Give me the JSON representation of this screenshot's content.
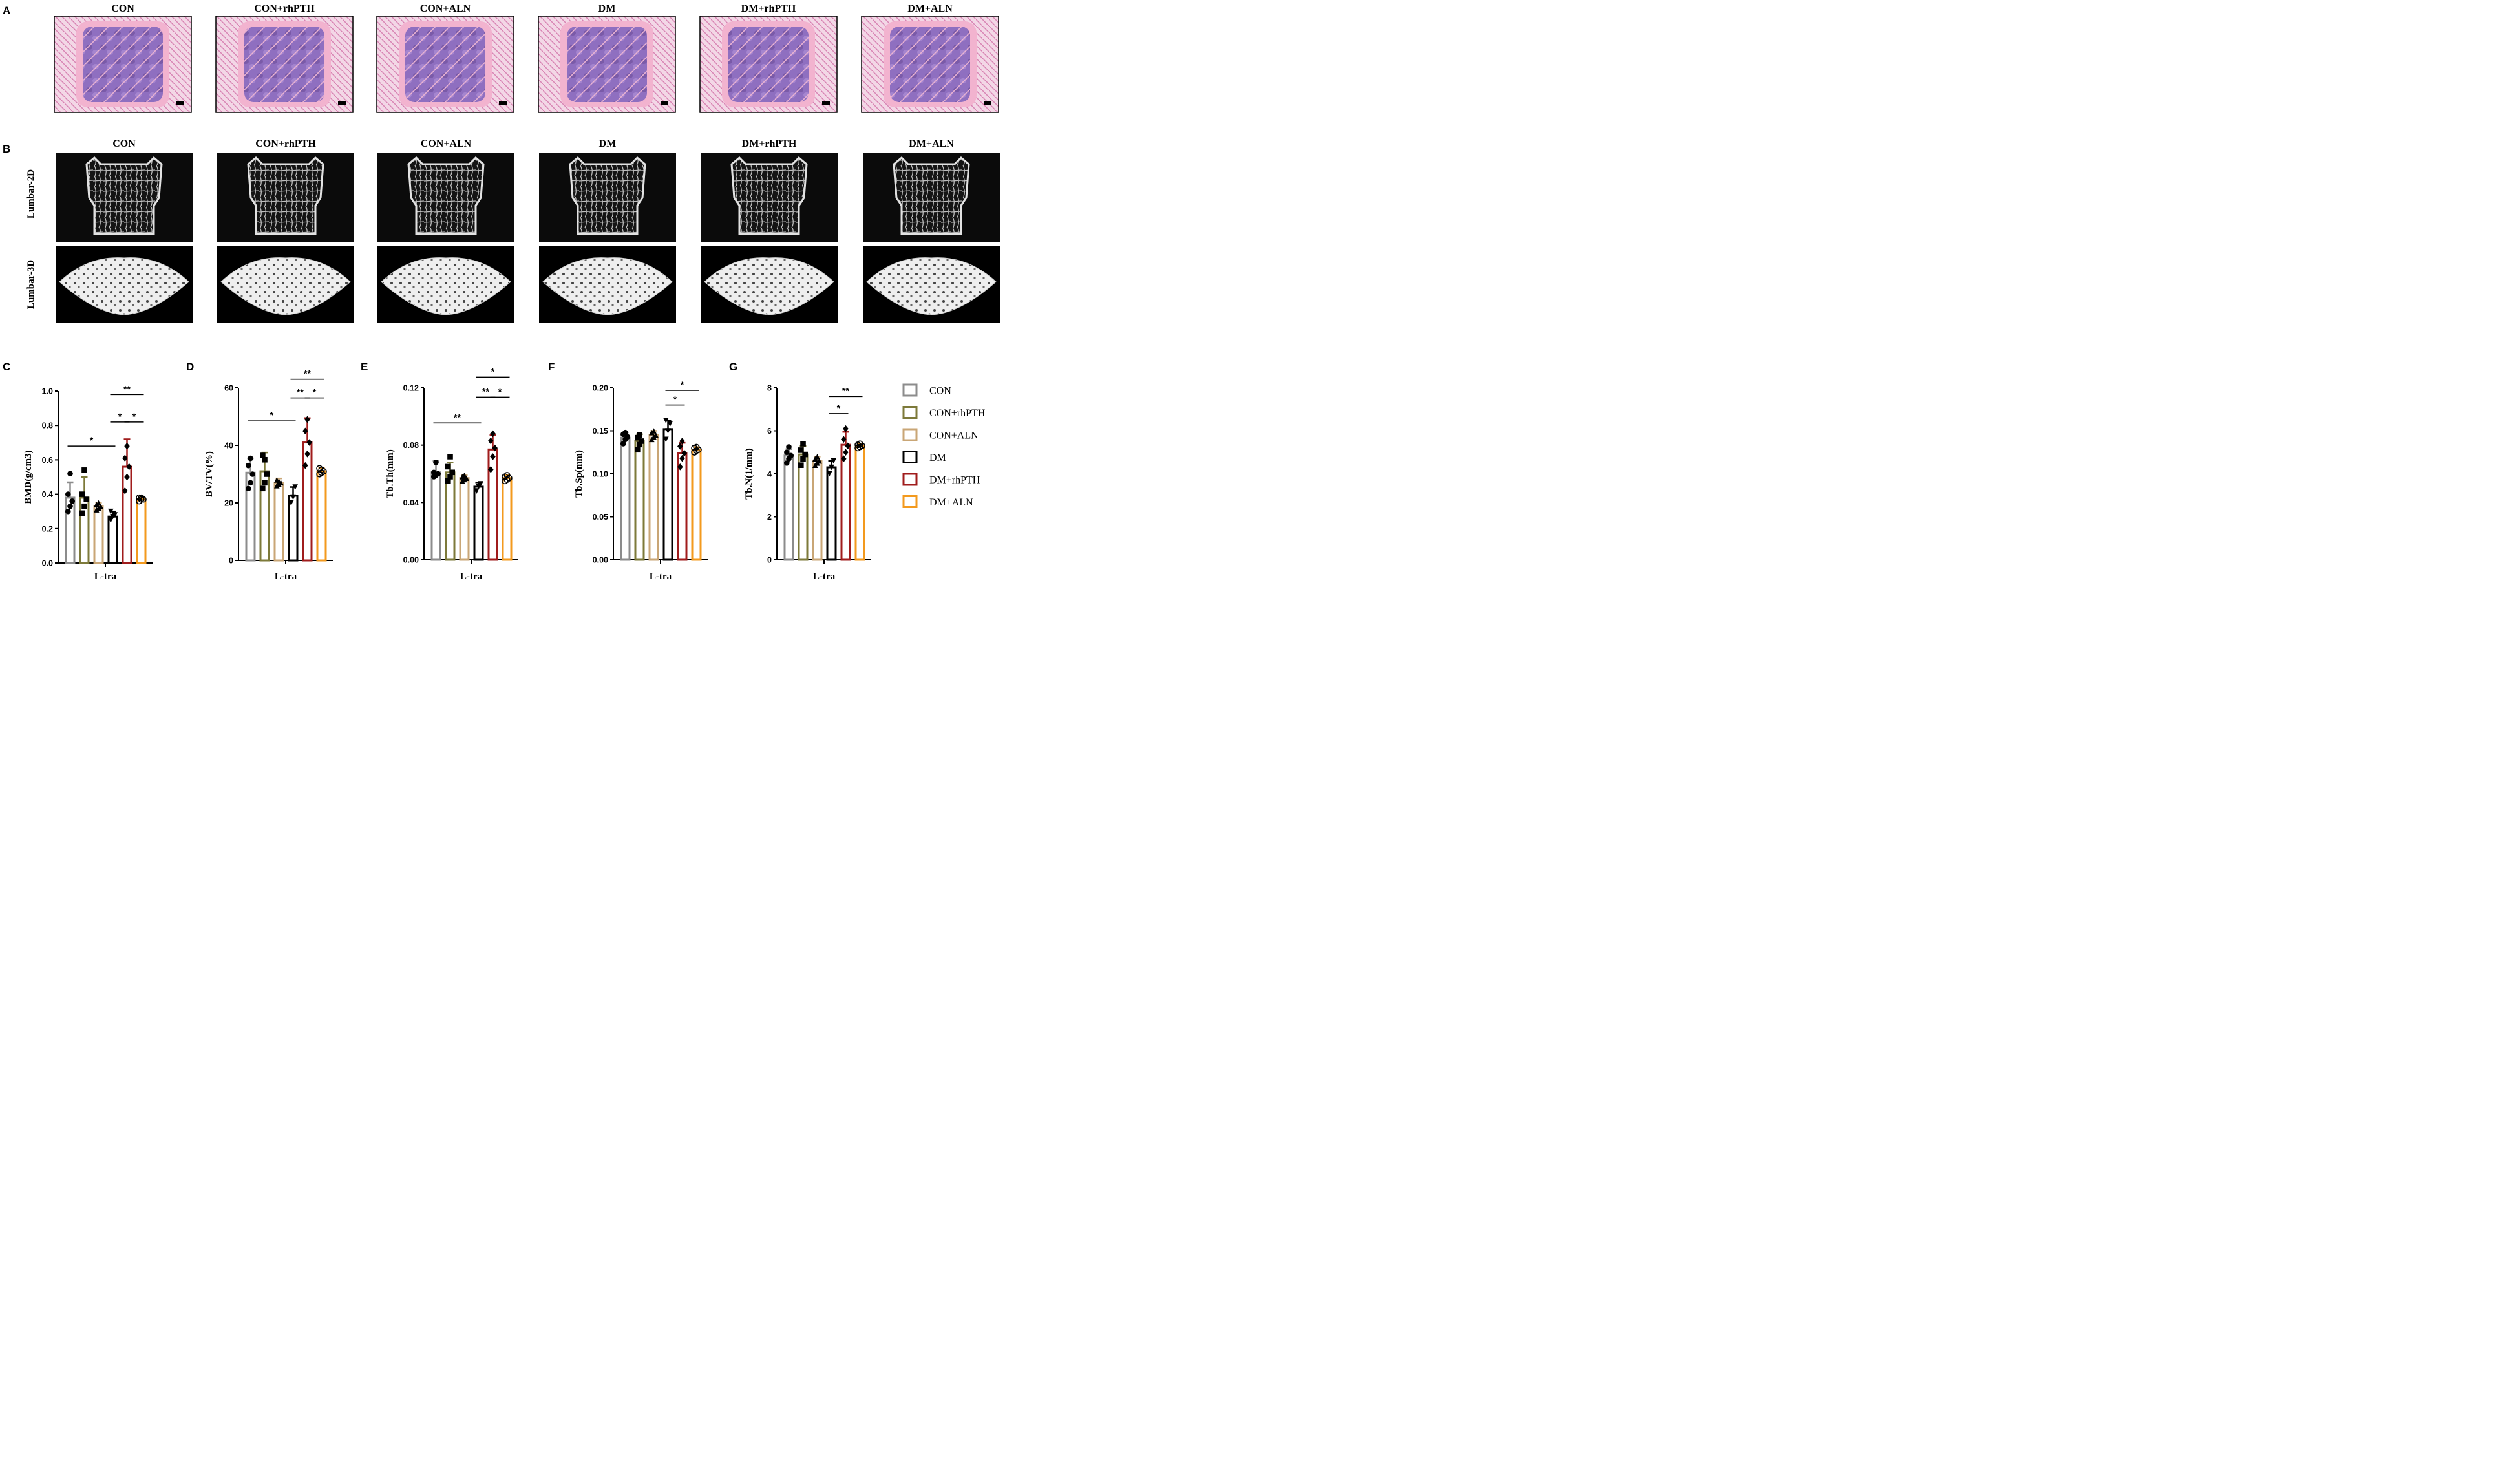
{
  "panels": {
    "A": {
      "letter": "A",
      "groups": [
        "CON",
        "CON+rhPTH",
        "CON+ALN",
        "DM",
        "DM+rhPTH",
        "DM+ALN"
      ]
    },
    "B": {
      "letter": "B",
      "groups": [
        "CON",
        "CON+rhPTH",
        "CON+ALN",
        "DM",
        "DM+rhPTH",
        "DM+ALN"
      ],
      "row_labels": [
        "Lumbar-2D",
        "Lumbar-3D"
      ]
    }
  },
  "legend": {
    "items": [
      {
        "label": "CON",
        "color": "#8c8c8c"
      },
      {
        "label": "CON+rhPTH",
        "color": "#7d7a3a"
      },
      {
        "label": "CON+ALN",
        "color": "#c9a676"
      },
      {
        "label": "DM",
        "color": "#000000"
      },
      {
        "label": "DM+rhPTH",
        "color": "#a01c1c"
      },
      {
        "label": "DM+ALN",
        "color": "#f39a1e"
      }
    ]
  },
  "chart_data": [
    {
      "panel": "C",
      "type": "bar",
      "xlabel": "L-tra",
      "ylabel": "BMD(g/cm3)",
      "ylim": [
        0,
        1.0
      ],
      "ticks": [
        "0.0",
        "0.2",
        "0.4",
        "0.6",
        "0.8",
        "1.0"
      ],
      "categories": [
        "CON",
        "CON+rhPTH",
        "CON+ALN",
        "DM",
        "DM+rhPTH",
        "DM+ALN"
      ],
      "values": [
        0.38,
        0.38,
        0.33,
        0.27,
        0.56,
        0.37
      ],
      "sd": [
        0.09,
        0.12,
        0.02,
        0.03,
        0.16,
        0.01
      ],
      "points": [
        [
          0.3,
          0.33,
          0.36,
          0.4,
          0.52
        ],
        [
          0.29,
          0.33,
          0.37,
          0.4,
          0.54
        ],
        [
          0.31,
          0.32,
          0.33,
          0.34,
          0.35
        ],
        [
          0.25,
          0.27,
          0.28,
          0.3
        ],
        [
          0.42,
          0.5,
          0.56,
          0.61,
          0.68
        ],
        [
          0.36,
          0.37,
          0.37,
          0.38,
          0.38
        ]
      ],
      "significance": [
        {
          "from": 0,
          "to": 3,
          "label": "*",
          "y": 0.68
        },
        {
          "from": 3,
          "to": 4,
          "label": "*",
          "y": 0.82
        },
        {
          "from": 4,
          "to": 5,
          "label": "*",
          "y": 0.82
        },
        {
          "from": 3,
          "to": 5,
          "label": "**",
          "y": 0.98
        }
      ]
    },
    {
      "panel": "D",
      "type": "bar",
      "xlabel": "L-tra",
      "ylabel": "BV/TV(%)",
      "ylim": [
        0,
        60
      ],
      "ticks": [
        "0",
        "20",
        "40",
        "60"
      ],
      "categories": [
        "CON",
        "CON+rhPTH",
        "CON+ALN",
        "DM",
        "DM+rhPTH",
        "DM+ALN"
      ],
      "values": [
        30.5,
        31.0,
        27.0,
        22.5,
        41.0,
        31.0
      ],
      "sd": [
        5.0,
        6.5,
        1.5,
        3.0,
        8.5,
        1.2
      ],
      "points": [
        [
          25.0,
          27.0,
          30.0,
          33.0,
          35.5
        ],
        [
          25.0,
          27.0,
          30.0,
          36.5,
          35.0
        ],
        [
          26.0,
          26.5,
          27.0,
          28.0,
          27.5
        ],
        [
          20.0,
          22.0,
          25.5
        ],
        [
          33.0,
          37.0,
          41.0,
          45.0,
          49.0
        ],
        [
          30.0,
          30.5,
          31.0,
          32.0,
          31.5
        ]
      ],
      "significance": [
        {
          "from": 0,
          "to": 3,
          "label": "*",
          "y": 48.5
        },
        {
          "from": 3,
          "to": 4,
          "label": "**",
          "y": 56.5
        },
        {
          "from": 4,
          "to": 5,
          "label": "*",
          "y": 56.5
        },
        {
          "from": 3,
          "to": 5,
          "label": "**",
          "y": 63.0
        }
      ]
    },
    {
      "panel": "E",
      "type": "bar",
      "xlabel": "L-tra",
      "ylabel": "Tb.Th(mm)",
      "ylim": [
        0,
        0.12
      ],
      "ticks": [
        "0.00",
        "0.04",
        "0.08",
        "0.12"
      ],
      "categories": [
        "CON",
        "CON+rhPTH",
        "CON+ALN",
        "DM",
        "DM+rhPTH",
        "DM+ALN"
      ],
      "values": [
        0.061,
        0.061,
        0.057,
        0.051,
        0.077,
        0.057
      ],
      "sd": [
        0.008,
        0.007,
        0.002,
        0.003,
        0.01,
        0.002
      ],
      "points": [
        [
          0.058,
          0.059,
          0.06,
          0.061,
          0.068
        ],
        [
          0.055,
          0.058,
          0.061,
          0.065,
          0.072
        ],
        [
          0.055,
          0.056,
          0.057,
          0.058,
          0.059
        ],
        [
          0.048,
          0.051,
          0.053
        ],
        [
          0.063,
          0.072,
          0.078,
          0.083,
          0.088
        ],
        [
          0.055,
          0.056,
          0.057,
          0.058,
          0.059
        ]
      ],
      "significance": [
        {
          "from": 0,
          "to": 3,
          "label": "**",
          "y": 0.0955
        },
        {
          "from": 3,
          "to": 4,
          "label": "**",
          "y": 0.1135
        },
        {
          "from": 4,
          "to": 5,
          "label": "*",
          "y": 0.1135
        },
        {
          "from": 3,
          "to": 5,
          "label": "*",
          "y": 0.1275
        }
      ]
    },
    {
      "panel": "F",
      "type": "bar",
      "xlabel": "L-tra",
      "ylabel": "Tb.Sp(mm)",
      "ylim": [
        0,
        0.2
      ],
      "ticks": [
        "0.00",
        "0.05",
        "0.10",
        "0.15",
        "0.20"
      ],
      "categories": [
        "CON",
        "CON+rhPTH",
        "CON+ALN",
        "DM",
        "DM+rhPTH",
        "DM+ALN"
      ],
      "values": [
        0.142,
        0.138,
        0.145,
        0.152,
        0.124,
        0.128
      ],
      "sd": [
        0.006,
        0.008,
        0.005,
        0.01,
        0.012,
        0.003
      ],
      "points": [
        [
          0.135,
          0.14,
          0.143,
          0.146,
          0.148
        ],
        [
          0.128,
          0.134,
          0.138,
          0.142,
          0.145
        ],
        [
          0.14,
          0.143,
          0.145,
          0.148,
          0.15
        ],
        [
          0.14,
          0.15,
          0.158,
          0.162
        ],
        [
          0.108,
          0.118,
          0.124,
          0.132,
          0.138
        ],
        [
          0.125,
          0.127,
          0.128,
          0.13,
          0.131
        ]
      ],
      "significance": [
        {
          "from": 3,
          "to": 4,
          "label": "*",
          "y": 0.18
        },
        {
          "from": 3,
          "to": 5,
          "label": "*",
          "y": 0.197
        }
      ]
    },
    {
      "panel": "G",
      "type": "bar",
      "xlabel": "L-tra",
      "ylabel": "Tb.N(1/mm)",
      "ylim": [
        0,
        8
      ],
      "ticks": [
        "0",
        "2",
        "4",
        "6",
        "8"
      ],
      "categories": [
        "CON",
        "CON+rhPTH",
        "CON+ALN",
        "DM",
        "DM+rhPTH",
        "DM+ALN"
      ],
      "values": [
        4.85,
        4.9,
        4.6,
        4.3,
        5.35,
        5.3
      ],
      "sd": [
        0.3,
        0.4,
        0.2,
        0.3,
        0.6,
        0.1
      ],
      "points": [
        [
          4.5,
          4.7,
          4.85,
          5.0,
          5.25
        ],
        [
          4.4,
          4.7,
          4.9,
          5.1,
          5.4
        ],
        [
          4.4,
          4.5,
          4.6,
          4.7,
          4.8
        ],
        [
          4.0,
          4.3,
          4.6
        ],
        [
          4.7,
          5.0,
          5.3,
          5.6,
          6.1
        ],
        [
          5.2,
          5.25,
          5.3,
          5.35,
          5.4
        ]
      ],
      "significance": [
        {
          "from": 3,
          "to": 4,
          "label": "*",
          "y": 6.8
        },
        {
          "from": 3,
          "to": 5,
          "label": "**",
          "y": 7.6
        }
      ]
    }
  ]
}
